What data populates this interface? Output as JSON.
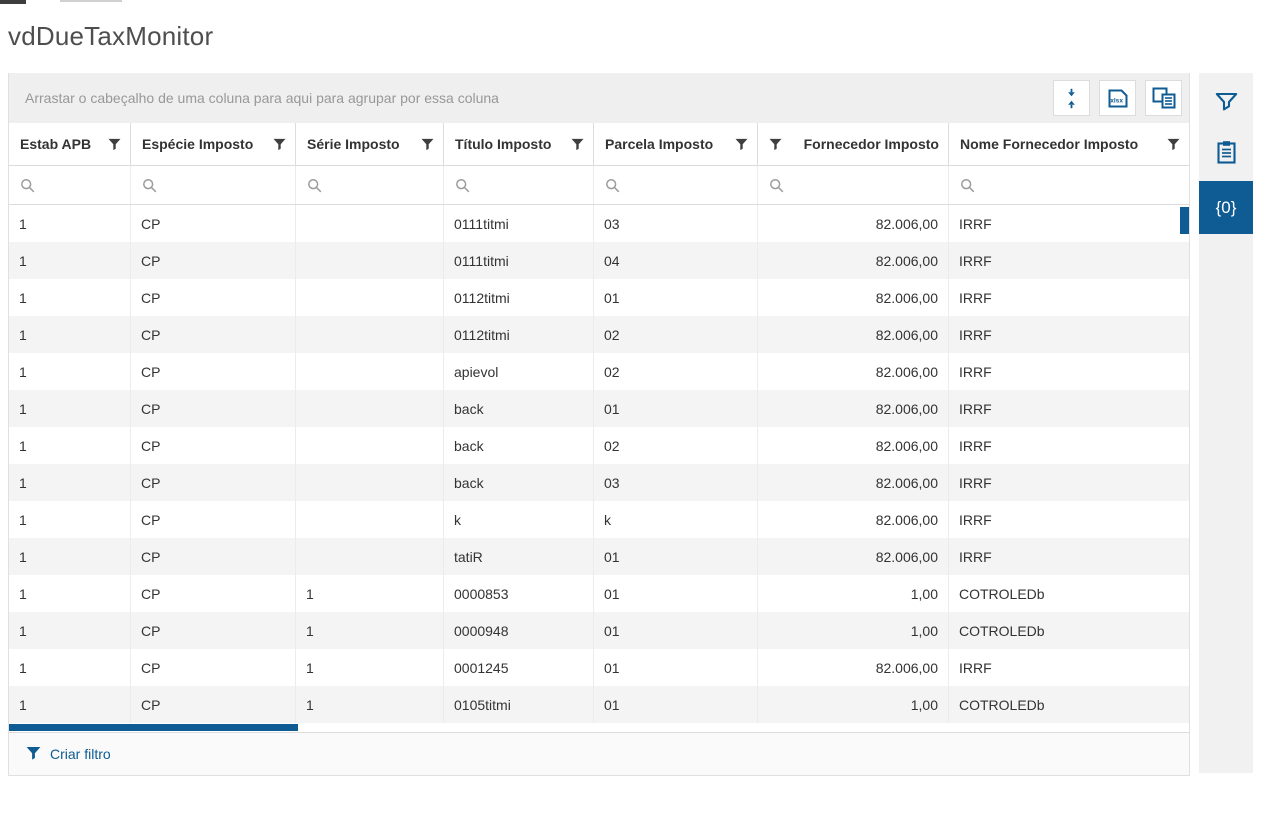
{
  "window": {
    "title": "vdDueTaxMonitor"
  },
  "grid": {
    "group_panel_hint": "Arrastar o cabeçalho de uma coluna para aqui para agrupar por essa coluna",
    "toolbar_buttons": [
      {
        "name": "fit-rows",
        "icon": "fit-rows-icon"
      },
      {
        "name": "export-xlsx",
        "icon": "xlsx-file-icon"
      },
      {
        "name": "column-chooser",
        "icon": "column-chooser-icon"
      }
    ],
    "columns": [
      {
        "label": "Estab APB",
        "align": "left",
        "filter_icon_side": "right"
      },
      {
        "label": "Espécie Imposto",
        "align": "left",
        "filter_icon_side": "right"
      },
      {
        "label": "Série Imposto",
        "align": "left",
        "filter_icon_side": "right"
      },
      {
        "label": "Título Imposto",
        "align": "left",
        "filter_icon_side": "right"
      },
      {
        "label": "Parcela Imposto",
        "align": "left",
        "filter_icon_side": "right"
      },
      {
        "label": "Fornecedor Imposto",
        "align": "right",
        "filter_icon_side": "left"
      },
      {
        "label": "Nome Fornecedor Imposto",
        "align": "left",
        "filter_icon_side": "right"
      }
    ],
    "filter_row_placeholders": [
      "",
      "",
      "",
      "",
      "",
      "",
      ""
    ],
    "rows": [
      [
        "1",
        "CP",
        "",
        "0111titmi",
        "03",
        "82.006,00",
        "IRRF"
      ],
      [
        "1",
        "CP",
        "",
        "0111titmi",
        "04",
        "82.006,00",
        "IRRF"
      ],
      [
        "1",
        "CP",
        "",
        "0112titmi",
        "01",
        "82.006,00",
        "IRRF"
      ],
      [
        "1",
        "CP",
        "",
        "0112titmi",
        "02",
        "82.006,00",
        "IRRF"
      ],
      [
        "1",
        "CP",
        "",
        "apievol",
        "02",
        "82.006,00",
        "IRRF"
      ],
      [
        "1",
        "CP",
        "",
        "back",
        "01",
        "82.006,00",
        "IRRF"
      ],
      [
        "1",
        "CP",
        "",
        "back",
        "02",
        "82.006,00",
        "IRRF"
      ],
      [
        "1",
        "CP",
        "",
        "back",
        "03",
        "82.006,00",
        "IRRF"
      ],
      [
        "1",
        "CP",
        "",
        "k",
        "k",
        "82.006,00",
        "IRRF"
      ],
      [
        "1",
        "CP",
        "",
        "tatiR",
        "01",
        "82.006,00",
        "IRRF"
      ],
      [
        "1",
        "CP",
        "1",
        "0000853",
        "01",
        "1,00",
        "COTROLEDb"
      ],
      [
        "1",
        "CP",
        "1",
        "0000948",
        "01",
        "1,00",
        "COTROLEDb"
      ],
      [
        "1",
        "CP",
        "1",
        "0001245",
        "01",
        "82.006,00",
        "IRRF"
      ],
      [
        "1",
        "CP",
        "1",
        "0105titmi",
        "01",
        "1,00",
        "COTROLEDb"
      ]
    ],
    "create_filter_label": "Criar filtro"
  },
  "side_toolbar": {
    "items": [
      {
        "name": "filter-builder",
        "icon": "funnel-outline-icon",
        "label": "",
        "active": false
      },
      {
        "name": "clipboard",
        "icon": "clipboard-icon",
        "label": "",
        "active": false
      },
      {
        "name": "parameters",
        "icon": "braces-text",
        "label": "{0}",
        "active": true
      }
    ]
  },
  "colors": {
    "accent": "#0f5b93",
    "header_funnel": "#3f3f3f",
    "search_icon": "#9b9b9b",
    "alt_row": "#f4f4f4",
    "group_panel_bg": "#efefef",
    "side_panel_bg": "#f1f1f1"
  }
}
